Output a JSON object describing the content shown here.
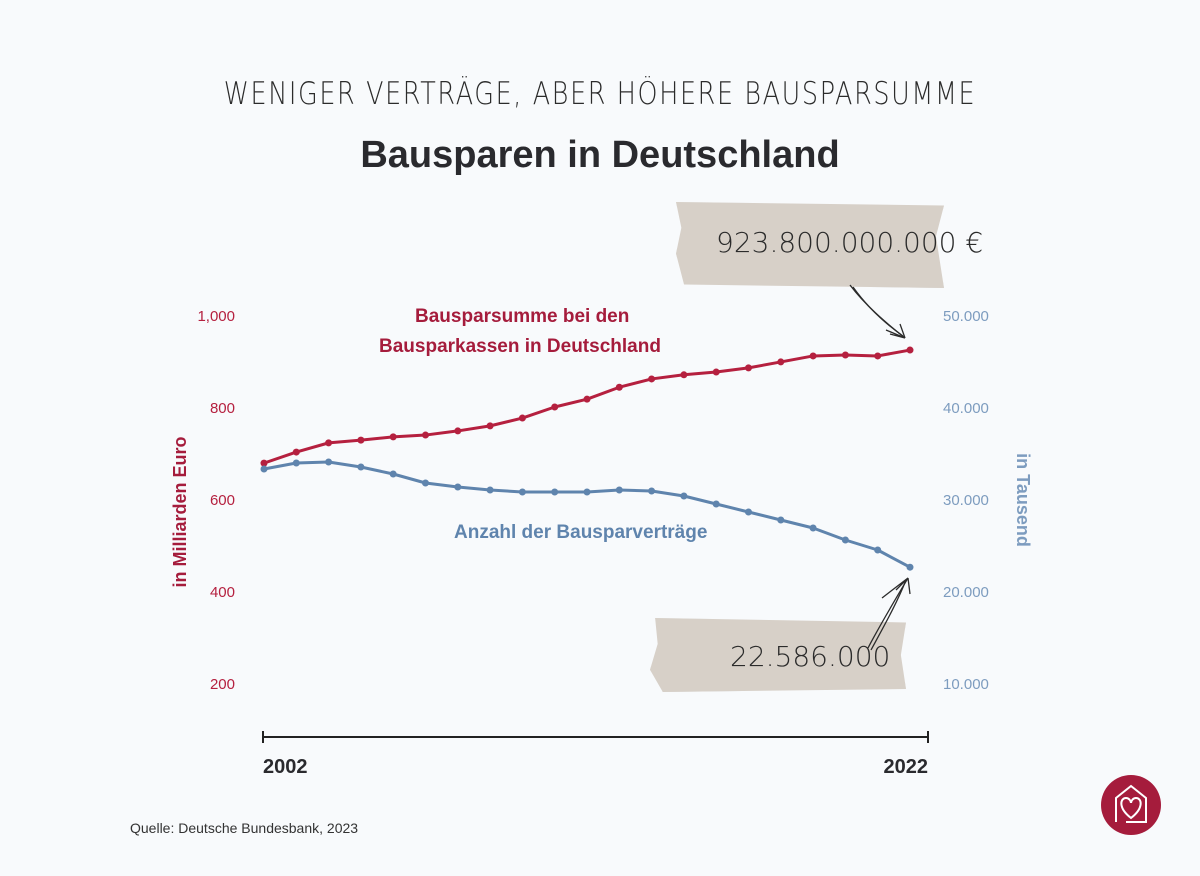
{
  "header": {
    "subtitle": "WENIGER VERTRÄGE, ABER HÖHERE BAUSPARSUMME",
    "title": "Bausparen in Deutschland"
  },
  "annotations": {
    "top": "923.800.000.000 €",
    "bottom": "22.586.000"
  },
  "source": "Quelle: Deutsche Bundesbank, 2023",
  "chart_data": {
    "type": "line",
    "x": [
      2002,
      2003,
      2004,
      2005,
      2006,
      2007,
      2008,
      2009,
      2010,
      2011,
      2012,
      2013,
      2014,
      2015,
      2016,
      2017,
      2018,
      2019,
      2020,
      2021,
      2022
    ],
    "x_tick_labels": [
      "2002",
      "2022"
    ],
    "series": [
      {
        "name": "Bausparsumme bei den Bausparkassen in Deutschland",
        "axis": "left",
        "color": "#b5203f",
        "values": [
          678,
          702,
          722,
          728,
          735,
          739,
          748,
          759,
          776,
          800,
          817,
          843,
          861,
          870,
          876,
          885,
          898,
          911,
          913,
          911,
          923.8
        ]
      },
      {
        "name": "Anzahl der Bausparverträge",
        "axis": "right",
        "color": "#5f84ad",
        "values": [
          33261,
          33913,
          34022,
          33478,
          32717,
          31739,
          31304,
          30978,
          30761,
          30761,
          30761,
          30978,
          30870,
          30326,
          29457,
          28587,
          27717,
          26848,
          25543,
          24457,
          22586
        ]
      }
    ],
    "left_axis": {
      "label": "in Milliarden Euro",
      "ticks": [
        "1,000",
        "800",
        "600",
        "400",
        "200"
      ],
      "tick_values": [
        1000,
        800,
        600,
        400,
        200
      ],
      "range": [
        200,
        1000
      ],
      "color": "#b5203f"
    },
    "right_axis": {
      "label": "in Tausend",
      "ticks": [
        "50.000",
        "40.000",
        "30.000",
        "20.000",
        "10.000"
      ],
      "tick_values": [
        50000,
        40000,
        30000,
        20000,
        10000
      ],
      "range": [
        10000,
        50000
      ],
      "color": "#7d9cbf"
    },
    "grid": false
  }
}
